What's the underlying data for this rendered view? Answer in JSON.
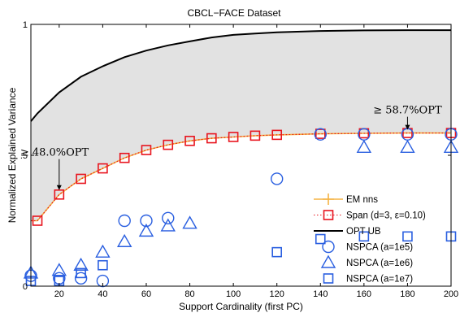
{
  "chart_data": {
    "type": "line",
    "title": "CBCL−FACE Dataset",
    "xlabel": "Support Cardinality (first PC)",
    "ylabel": "Normalized Explained Variance",
    "xlim": [
      7,
      200
    ],
    "ylim": [
      0,
      1
    ],
    "x_ticks": [
      20,
      40,
      60,
      80,
      100,
      120,
      140,
      160,
      180,
      200
    ],
    "x_tick_labels": [
      "20",
      "40",
      "60",
      "80",
      "100",
      "120",
      "140",
      "160",
      "180",
      "200"
    ],
    "y_ticks": [
      0,
      0.5,
      1
    ],
    "y_tick_labels": [
      "0",
      ".5",
      "1"
    ],
    "grid": false,
    "legend_position": "bottom-right",
    "shaded_region": "between OPT UB and Span (d=3, ε=0.10)",
    "annotations": [
      {
        "text": "≥ 58.7%OPT",
        "x": 180,
        "y": 0.585
      },
      {
        "text": "≥ 48.0%OPT",
        "x": 20,
        "y": 0.355
      }
    ],
    "series": [
      {
        "name": "EM nns",
        "color": "#f5b342",
        "marker": "plus",
        "x": [
          7,
          10,
          20,
          30,
          40,
          50,
          60,
          70,
          80,
          90,
          100,
          110,
          120,
          140,
          160,
          180,
          200
        ],
        "y": [
          0.25,
          0.25,
          0.35,
          0.41,
          0.45,
          0.49,
          0.52,
          0.54,
          0.555,
          0.565,
          0.57,
          0.575,
          0.578,
          0.582,
          0.584,
          0.585,
          0.585
        ]
      },
      {
        "name": "Span (d=3, ε=0.10)",
        "color": "#e8141e",
        "marker": "square",
        "x": [
          10,
          20,
          30,
          40,
          50,
          60,
          70,
          80,
          90,
          100,
          110,
          120,
          140,
          160,
          180,
          200
        ],
        "y": [
          0.25,
          0.35,
          0.41,
          0.45,
          0.49,
          0.52,
          0.54,
          0.555,
          0.565,
          0.57,
          0.575,
          0.578,
          0.582,
          0.584,
          0.585,
          0.585
        ]
      },
      {
        "name": "OPT UB",
        "color": "#000000",
        "marker": "none",
        "x": [
          7,
          10,
          20,
          30,
          40,
          50,
          60,
          70,
          80,
          90,
          100,
          110,
          120,
          140,
          160,
          180,
          200
        ],
        "y": [
          0.63,
          0.66,
          0.74,
          0.8,
          0.84,
          0.875,
          0.9,
          0.92,
          0.935,
          0.95,
          0.96,
          0.965,
          0.97,
          0.975,
          0.977,
          0.978,
          0.978
        ]
      },
      {
        "name": "NSPCA (a=1e5)",
        "color": "#2a5fe0",
        "marker": "circle",
        "x": [
          7,
          20,
          30,
          40,
          50,
          60,
          70,
          120,
          140,
          160,
          180,
          200
        ],
        "y": [
          0.04,
          0.03,
          0.03,
          0.02,
          0.25,
          0.25,
          0.26,
          0.41,
          0.58,
          0.58,
          0.58,
          0.58
        ]
      },
      {
        "name": "NSPCA (a=1e6)",
        "color": "#2a5fe0",
        "marker": "triangle",
        "x": [
          7,
          20,
          30,
          40,
          50,
          60,
          70,
          80,
          160,
          180,
          200
        ],
        "y": [
          0.05,
          0.06,
          0.08,
          0.13,
          0.17,
          0.21,
          0.23,
          0.24,
          0.53,
          0.53,
          0.53
        ]
      },
      {
        "name": "NSPCA (a=1e7)",
        "color": "#2a5fe0",
        "marker": "square",
        "x": [
          7,
          20,
          30,
          40,
          120,
          140,
          160,
          180,
          200
        ],
        "y": [
          0.02,
          0.02,
          0.05,
          0.08,
          0.13,
          0.18,
          0.19,
          0.19,
          0.19
        ]
      }
    ]
  }
}
